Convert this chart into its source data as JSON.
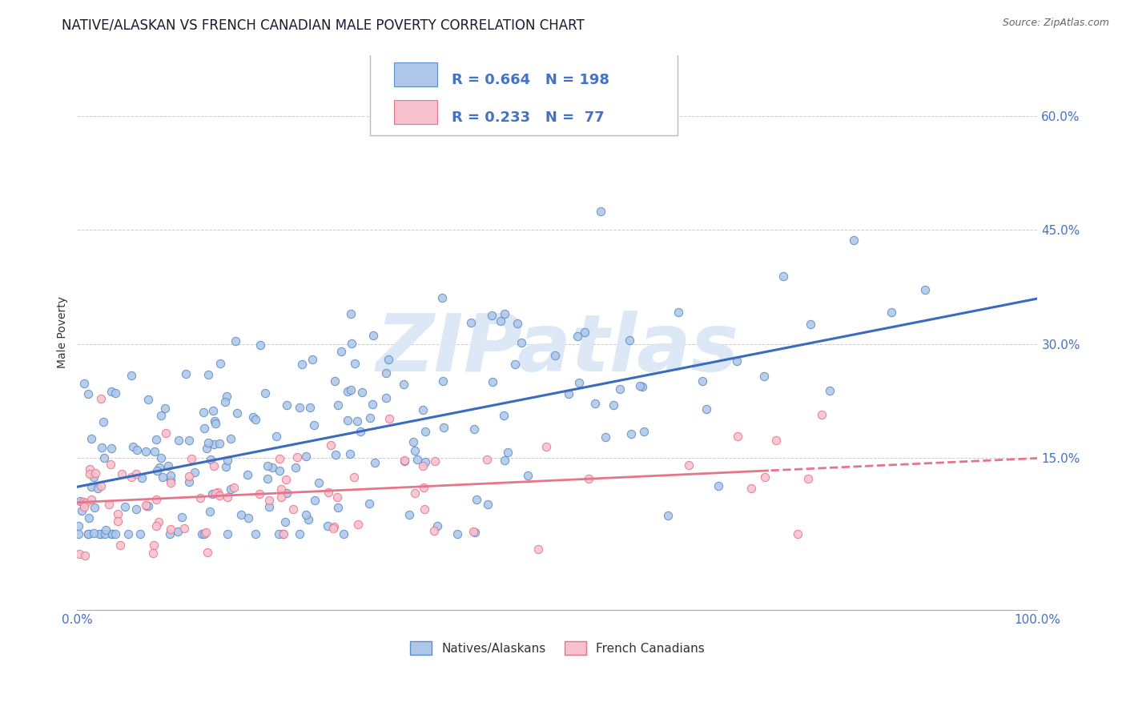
{
  "title": "NATIVE/ALASKAN VS FRENCH CANADIAN MALE POVERTY CORRELATION CHART",
  "source_text": "Source: ZipAtlas.com",
  "ylabel": "Male Poverty",
  "xlim": [
    0,
    1
  ],
  "ylim": [
    -0.05,
    0.68
  ],
  "yticks": [
    0.15,
    0.3,
    0.45,
    0.6
  ],
  "ytick_labels": [
    "15.0%",
    "30.0%",
    "45.0%",
    "60.0%"
  ],
  "xtick_labels": [
    "0.0%",
    "100.0%"
  ],
  "legend_R1": "0.664",
  "legend_N1": "198",
  "legend_R2": "0.233",
  "legend_N2": " 77",
  "color_blue_fill": "#aec6e8",
  "color_blue_edge": "#5b8fc9",
  "color_pink_fill": "#f7c0ce",
  "color_pink_edge": "#e8748a",
  "color_blue_line": "#3a6bbf",
  "color_pink_line": "#e8748a",
  "color_title": "#1a1a2e",
  "color_source": "#666666",
  "color_axis_text": "#4472c4",
  "watermark_text": "ZIPatlas",
  "watermark_color": "#dce8f5",
  "background_color": "#ffffff",
  "grid_color": "#cccccc",
  "title_fontsize": 12,
  "axis_label_fontsize": 10,
  "tick_fontsize": 11
}
